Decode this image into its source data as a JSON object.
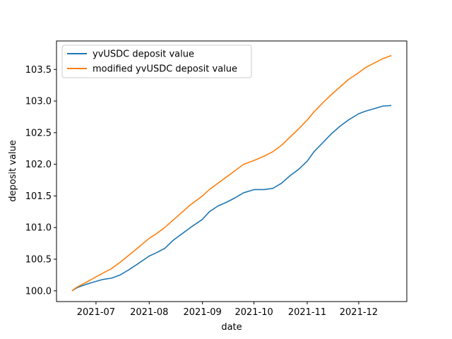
{
  "chart_data": {
    "type": "line",
    "xlabel": "date",
    "ylabel": "deposit value",
    "x_ticks": [
      "2021-07",
      "2021-08",
      "2021-09",
      "2021-10",
      "2021-11",
      "2021-12"
    ],
    "y_ticks": [
      "100.0",
      "100.5",
      "101.0",
      "101.5",
      "102.0",
      "102.5",
      "103.0",
      "103.5"
    ],
    "xlim": [
      "2021-06-08",
      "2021-12-29"
    ],
    "ylim": [
      99.83,
      103.95
    ],
    "grid": false,
    "legend_position": "top-left",
    "series": [
      {
        "name": "yvUSDC deposit value",
        "color": "#1f77b4",
        "points": [
          [
            "2021-06-17",
            100.0
          ],
          [
            "2021-06-20",
            100.05
          ],
          [
            "2021-06-25",
            100.1
          ],
          [
            "2021-07-01",
            100.15
          ],
          [
            "2021-07-05",
            100.18
          ],
          [
            "2021-07-10",
            100.2
          ],
          [
            "2021-07-15",
            100.25
          ],
          [
            "2021-07-20",
            100.33
          ],
          [
            "2021-07-25",
            100.42
          ],
          [
            "2021-08-01",
            100.55
          ],
          [
            "2021-08-05",
            100.6
          ],
          [
            "2021-08-10",
            100.67
          ],
          [
            "2021-08-15",
            100.8
          ],
          [
            "2021-08-20",
            100.9
          ],
          [
            "2021-08-25",
            101.0
          ],
          [
            "2021-09-01",
            101.13
          ],
          [
            "2021-09-05",
            101.25
          ],
          [
            "2021-09-10",
            101.34
          ],
          [
            "2021-09-15",
            101.4
          ],
          [
            "2021-09-20",
            101.47
          ],
          [
            "2021-09-25",
            101.55
          ],
          [
            "2021-10-01",
            101.6
          ],
          [
            "2021-10-07",
            101.6
          ],
          [
            "2021-10-12",
            101.62
          ],
          [
            "2021-10-17",
            101.7
          ],
          [
            "2021-10-22",
            101.82
          ],
          [
            "2021-10-27",
            101.92
          ],
          [
            "2021-11-01",
            102.05
          ],
          [
            "2021-11-05",
            102.2
          ],
          [
            "2021-11-10",
            102.34
          ],
          [
            "2021-11-15",
            102.48
          ],
          [
            "2021-11-20",
            102.6
          ],
          [
            "2021-11-25",
            102.7
          ],
          [
            "2021-12-01",
            102.8
          ],
          [
            "2021-12-05",
            102.84
          ],
          [
            "2021-12-10",
            102.88
          ],
          [
            "2021-12-15",
            102.92
          ],
          [
            "2021-12-20",
            102.93
          ]
        ]
      },
      {
        "name": "modified yvUSDC deposit value",
        "color": "#ff7f0e",
        "points": [
          [
            "2021-06-17",
            100.0
          ],
          [
            "2021-06-20",
            100.06
          ],
          [
            "2021-06-25",
            100.13
          ],
          [
            "2021-07-01",
            100.22
          ],
          [
            "2021-07-05",
            100.28
          ],
          [
            "2021-07-10",
            100.35
          ],
          [
            "2021-07-15",
            100.45
          ],
          [
            "2021-07-20",
            100.56
          ],
          [
            "2021-07-25",
            100.67
          ],
          [
            "2021-08-01",
            100.83
          ],
          [
            "2021-08-05",
            100.9
          ],
          [
            "2021-08-10",
            101.0
          ],
          [
            "2021-08-15",
            101.12
          ],
          [
            "2021-08-20",
            101.24
          ],
          [
            "2021-08-25",
            101.36
          ],
          [
            "2021-09-01",
            101.5
          ],
          [
            "2021-09-05",
            101.6
          ],
          [
            "2021-09-10",
            101.7
          ],
          [
            "2021-09-15",
            101.8
          ],
          [
            "2021-09-20",
            101.9
          ],
          [
            "2021-09-25",
            102.0
          ],
          [
            "2021-10-01",
            102.06
          ],
          [
            "2021-10-07",
            102.13
          ],
          [
            "2021-10-12",
            102.2
          ],
          [
            "2021-10-17",
            102.3
          ],
          [
            "2021-10-22",
            102.43
          ],
          [
            "2021-10-27",
            102.56
          ],
          [
            "2021-11-01",
            102.7
          ],
          [
            "2021-11-05",
            102.83
          ],
          [
            "2021-11-10",
            102.97
          ],
          [
            "2021-11-15",
            103.1
          ],
          [
            "2021-11-20",
            103.22
          ],
          [
            "2021-11-25",
            103.34
          ],
          [
            "2021-12-01",
            103.45
          ],
          [
            "2021-12-05",
            103.53
          ],
          [
            "2021-12-10",
            103.6
          ],
          [
            "2021-12-15",
            103.67
          ],
          [
            "2021-12-20",
            103.72
          ]
        ]
      }
    ]
  }
}
